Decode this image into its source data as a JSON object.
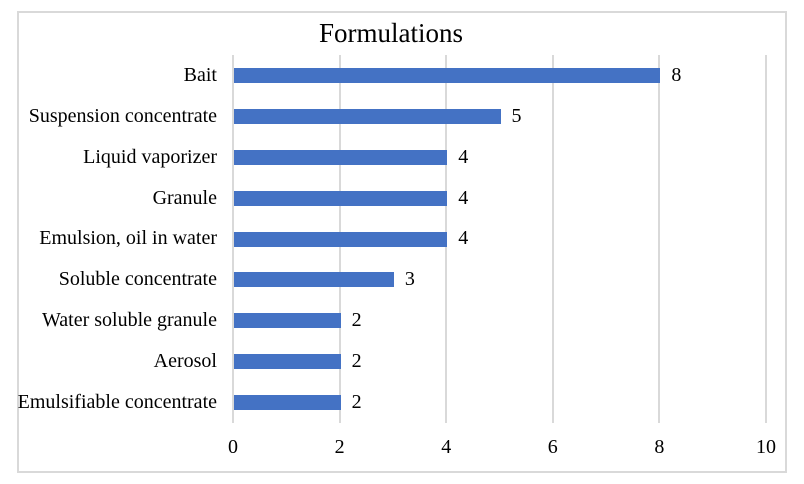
{
  "chart_data": {
    "type": "bar",
    "orientation": "horizontal",
    "title": "Formulations",
    "categories": [
      "Bait",
      "Suspension concentrate",
      "Liquid vaporizer",
      "Granule",
      "Emulsion, oil in water",
      "Soluble concentrate",
      "Water soluble granule",
      "Aerosol",
      "Emulsifiable concentrate"
    ],
    "values": [
      8,
      5,
      4,
      4,
      4,
      3,
      2,
      2,
      2
    ],
    "data_labels": [
      "8",
      "5",
      "4",
      "4",
      "4",
      "3",
      "2",
      "2",
      "2"
    ],
    "xlabel": "",
    "ylabel": "",
    "xlim": [
      0,
      10
    ],
    "x_ticks": [
      0,
      2,
      4,
      6,
      8,
      10
    ],
    "grid": "vertical",
    "legend": "none",
    "colors": {
      "bar": "#4472C4",
      "gridline": "#D9D9D9",
      "frame_border": "#D9D9D9",
      "text": "#000000",
      "background": "#FFFFFF"
    }
  }
}
